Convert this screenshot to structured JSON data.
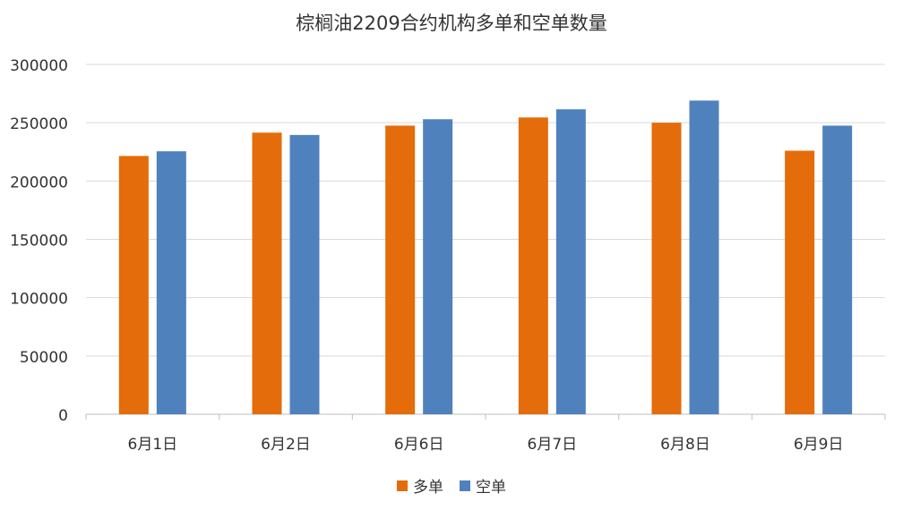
{
  "chart_data": {
    "type": "bar",
    "title": "棕榈油2209合约机构多单和空单数量",
    "xlabel": "",
    "ylabel": "",
    "categories": [
      "6月1日",
      "6月2日",
      "6月6日",
      "6月7日",
      "6月8日",
      "6月9日"
    ],
    "series": [
      {
        "name": "多单",
        "color": "#E46C0A",
        "values": [
          221500,
          241500,
          247500,
          254500,
          250000,
          226000
        ]
      },
      {
        "name": "空单",
        "color": "#4F81BD",
        "values": [
          225500,
          239500,
          253000,
          261500,
          269000,
          247500
        ]
      }
    ],
    "ylim": [
      0,
      300000
    ],
    "yticks": [
      "0",
      "50000",
      "100000",
      "150000",
      "200000",
      "250000",
      "300000"
    ],
    "grid": true,
    "legend": "bottom-center"
  }
}
